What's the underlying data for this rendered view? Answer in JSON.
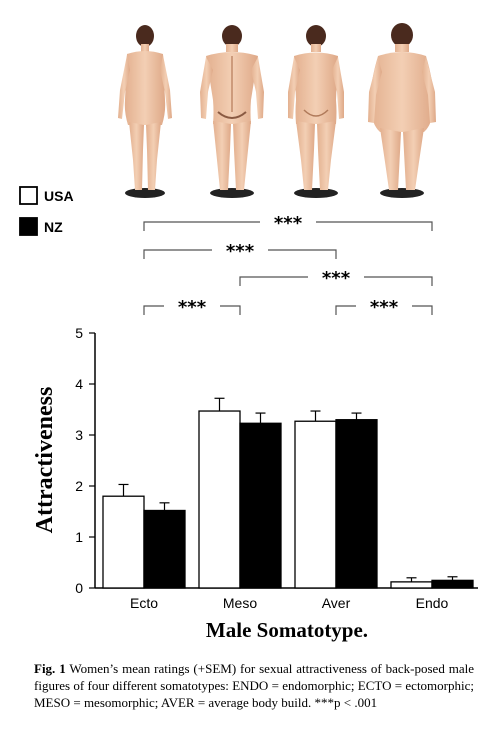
{
  "chart_data": {
    "type": "bar",
    "categories": [
      "Ecto",
      "Meso",
      "Aver",
      "Endo"
    ],
    "series": [
      {
        "name": "USA",
        "color": "#ffffff",
        "values": [
          1.8,
          3.47,
          3.27,
          0.12
        ],
        "errors": [
          0.23,
          0.25,
          0.2,
          0.08
        ]
      },
      {
        "name": "NZ",
        "color": "#000000",
        "values": [
          1.52,
          3.23,
          3.3,
          0.15
        ],
        "errors": [
          0.15,
          0.2,
          0.13,
          0.07
        ]
      }
    ],
    "ylabel": "Attractiveness",
    "xlabel": "Male Somatotype.",
    "ylim": [
      0,
      5
    ],
    "yticks": [
      "0",
      "1",
      "2",
      "3",
      "4",
      "5"
    ],
    "legend_position": "top-left",
    "significance": [
      {
        "from": "Ecto",
        "to": "Endo",
        "label": "***"
      },
      {
        "from": "Ecto",
        "to": "Aver",
        "label": "***"
      },
      {
        "from": "Meso",
        "to": "Endo",
        "label": "***"
      },
      {
        "from": "Ecto",
        "to": "Meso",
        "label": "***"
      },
      {
        "from": "Aver",
        "to": "Endo",
        "label": "***"
      }
    ]
  },
  "figures": [
    {
      "name": "ecto-figure-icon"
    },
    {
      "name": "meso-figure-icon"
    },
    {
      "name": "aver-figure-icon"
    },
    {
      "name": "endo-figure-icon"
    }
  ],
  "caption": {
    "lead": "Fig. 1",
    "text": " Women’s mean ratings (+SEM) for sexual attractiveness of back-posed male figures of four different somatotypes: ENDO = endomorphic; ECTO = ectomorphic; MESO = mesomorphic; AVER = average body build. ***p < .001"
  }
}
